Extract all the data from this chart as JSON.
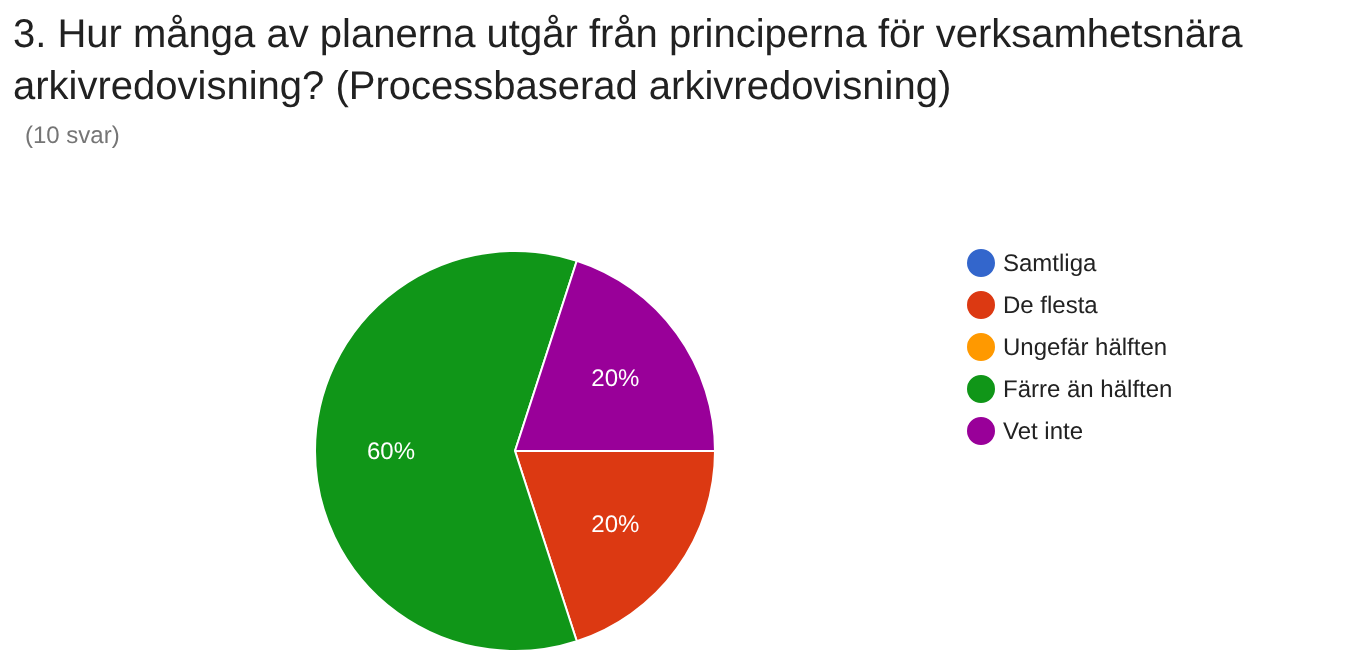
{
  "chart_data": {
    "type": "pie",
    "title": "3. Hur många av planerna utgår från principerna för verksamhetsnära arkivredovisning? (Processbaserad arkivredovisning)",
    "subtitle": "(10 svar)",
    "categories": [
      "Samtliga",
      "De flesta",
      "Ungefär hälften",
      "Färre än hälften",
      "Vet inte"
    ],
    "values": [
      0,
      20,
      0,
      60,
      20
    ],
    "colors": [
      "#3366cc",
      "#dc3912",
      "#ff9900",
      "#109618",
      "#990099"
    ],
    "value_labels": [
      null,
      "20%",
      null,
      "60%",
      "20%"
    ],
    "legend": "right"
  }
}
